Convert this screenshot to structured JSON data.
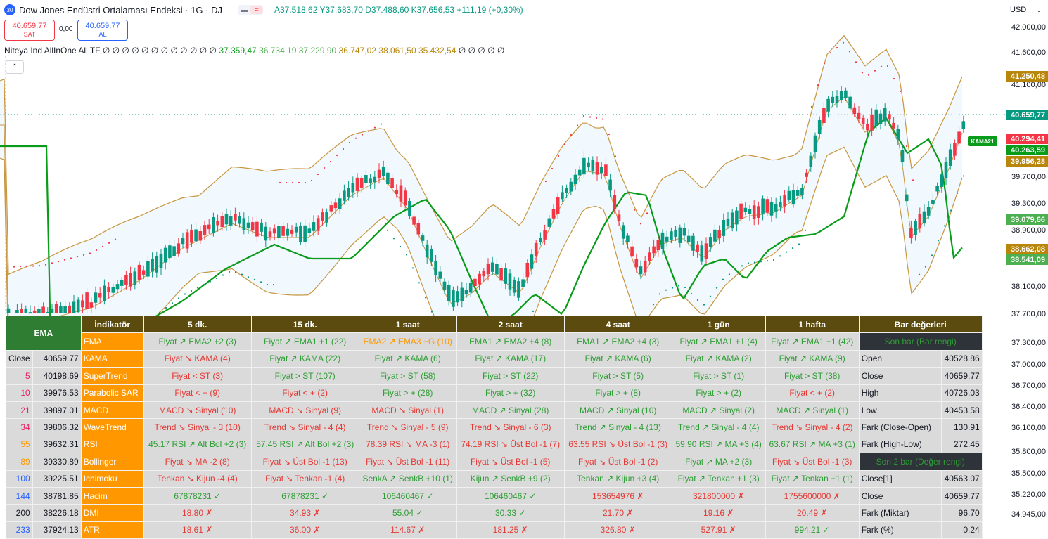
{
  "header": {
    "badge": "30",
    "title": "Dow Jones Endüstri Ortalaması Endeksi · 1G · DJ",
    "ohlc": {
      "o": "A37.518,62",
      "h": "Y37.683,70",
      "l": "D37.488,60",
      "c": "K37.656,53",
      "chg": "+111,19 (+0,30%)"
    }
  },
  "trade": {
    "sell_price": "40.659,77",
    "sell_label": "SAT",
    "spread": "0,00",
    "buy_price": "40.659,77",
    "buy_label": "AL"
  },
  "indicator_line": {
    "prefix": "Niteya Ind AllInOne All TF",
    "zeros": "∅ ∅ ∅ ∅ ∅ ∅ ∅ ∅ ∅ ∅ ∅ ∅",
    "v1": "37.359,47",
    "v2": "36.734,19",
    "v3": "37.229,90",
    "v4": "36.747,02",
    "v5": "38.061,50",
    "v6": "35.432,54",
    "tail": "∅ ∅ ∅ ∅ ∅"
  },
  "currency": "USD",
  "price_axis": [
    "42.000,00",
    "41.600,00",
    "41.100,00",
    "39.700,00",
    "39.300,00",
    "38.900,00",
    "38.100,00",
    "37.700,00",
    "37.300,00",
    "37.000,00",
    "36.700,00",
    "36.400,00",
    "36.100,00",
    "35.800,00",
    "35.500,00",
    "35.220,00",
    "34.945,00"
  ],
  "price_labels": [
    {
      "text": "41.250,48",
      "color": "#b8860b"
    },
    {
      "text": "40.659,77",
      "color": "#089981"
    },
    {
      "text": "40.294,41",
      "color": "#f23645"
    },
    {
      "text": "40.263,59",
      "color": "#089c1a"
    },
    {
      "text": "39.956,28",
      "color": "#b8860b"
    },
    {
      "text": "39.079,66",
      "color": "#4caf50"
    },
    {
      "text": "38.662,08",
      "color": "#b8860b"
    },
    {
      "text": "38.541,09",
      "color": "#4caf50"
    }
  ],
  "kama_label": "KAMA21",
  "table": {
    "ema_header": "EMA",
    "ind_header": "İndikatör",
    "tf_headers": [
      "5 dk.",
      "15 dk.",
      "1 saat",
      "2 saat",
      "4 saat",
      "1 gün",
      "1 hafta"
    ],
    "bar_header": "Bar değerleri",
    "ema_rows": [
      {
        "p": "Close",
        "v": "40659.77",
        "c": "#131722"
      },
      {
        "p": "5",
        "v": "40198.69",
        "c": "#e91e63"
      },
      {
        "p": "10",
        "v": "39976.53",
        "c": "#e91e63"
      },
      {
        "p": "21",
        "v": "39897.01",
        "c": "#e91e63"
      },
      {
        "p": "34",
        "v": "39806.32",
        "c": "#e91e63"
      },
      {
        "p": "55",
        "v": "39632.31",
        "c": "#ff9800"
      },
      {
        "p": "89",
        "v": "39330.89",
        "c": "#ff9800"
      },
      {
        "p": "100",
        "v": "39225.51",
        "c": "#2962ff"
      },
      {
        "p": "144",
        "v": "38781.85",
        "c": "#2962ff"
      },
      {
        "p": "200",
        "v": "38226.18",
        "c": "#131722"
      },
      {
        "p": "233",
        "v": "37924.13",
        "c": "#2962ff"
      }
    ],
    "rows": [
      {
        "name": "EMA",
        "cells": [
          [
            "Fiyat ↗ EMA2 +2 (3)",
            "g"
          ],
          [
            "Fiyat ↗ EMA1 +1 (22)",
            "g"
          ],
          [
            "EMA2 ↗ EMA3 +G (10)",
            "o"
          ],
          [
            "EMA1 ↗ EMA2 +4 (8)",
            "g"
          ],
          [
            "EMA1 ↗ EMA2 +4 (3)",
            "g"
          ],
          [
            "Fiyat ↗ EMA1 +1 (4)",
            "g"
          ],
          [
            "Fiyat ↗ EMA1 +1 (42)",
            "g"
          ]
        ]
      },
      {
        "name": "KAMA",
        "cells": [
          [
            "Fiyat ↘ KAMA (4)",
            "r"
          ],
          [
            "Fiyat ↗ KAMA (22)",
            "g"
          ],
          [
            "Fiyat ↗ KAMA (6)",
            "g"
          ],
          [
            "Fiyat ↗ KAMA (17)",
            "g"
          ],
          [
            "Fiyat ↗ KAMA (6)",
            "g"
          ],
          [
            "Fiyat ↗ KAMA (2)",
            "g"
          ],
          [
            "Fiyat ↗ KAMA (9)",
            "g"
          ]
        ]
      },
      {
        "name": "SuperTrend",
        "cells": [
          [
            "Fiyat < ST (3)",
            "r"
          ],
          [
            "Fiyat > ST (107)",
            "g"
          ],
          [
            "Fiyat > ST (58)",
            "g"
          ],
          [
            "Fiyat > ST (22)",
            "g"
          ],
          [
            "Fiyat > ST (5)",
            "g"
          ],
          [
            "Fiyat > ST (1)",
            "g"
          ],
          [
            "Fiyat > ST (38)",
            "g"
          ]
        ]
      },
      {
        "name": "Parabolic SAR",
        "cells": [
          [
            "Fiyat < + (9)",
            "r"
          ],
          [
            "Fiyat < + (2)",
            "r"
          ],
          [
            "Fiyat > + (28)",
            "g"
          ],
          [
            "Fiyat > + (32)",
            "g"
          ],
          [
            "Fiyat > + (8)",
            "g"
          ],
          [
            "Fiyat > + (2)",
            "g"
          ],
          [
            "Fiyat < + (2)",
            "r"
          ]
        ]
      },
      {
        "name": "MACD",
        "cells": [
          [
            "MACD ↘ Sinyal (10)",
            "r"
          ],
          [
            "MACD ↘ Sinyal (9)",
            "r"
          ],
          [
            "MACD ↘ Sinyal (1)",
            "r"
          ],
          [
            "MACD ↗ Sinyal (28)",
            "g"
          ],
          [
            "MACD ↗ Sinyal (10)",
            "g"
          ],
          [
            "MACD ↗ Sinyal (2)",
            "g"
          ],
          [
            "MACD ↗ Sinyal (1)",
            "g"
          ]
        ]
      },
      {
        "name": "WaveTrend",
        "cells": [
          [
            "Trend ↘ Sinyal - 3 (10)",
            "r"
          ],
          [
            "Trend ↘ Sinyal - 4 (4)",
            "r"
          ],
          [
            "Trend ↘ Sinyal - 5 (9)",
            "r"
          ],
          [
            "Trend ↘ Sinyal - 6 (3)",
            "r"
          ],
          [
            "Trend ↗ Sinyal - 4 (13)",
            "g"
          ],
          [
            "Trend ↗ Sinyal - 4 (4)",
            "g"
          ],
          [
            "Trend ↘ Sinyal - 4 (2)",
            "r"
          ]
        ]
      },
      {
        "name": "RSI",
        "cells": [
          [
            "45.17 RSI ↗ Alt Bol +2 (3)",
            "g"
          ],
          [
            "57.45 RSI ↗ Alt Bol +2 (3)",
            "g"
          ],
          [
            "78.39 RSI ↘ MA -3 (1)",
            "r"
          ],
          [
            "74.19 RSI ↘ Üst Bol -1 (7)",
            "r"
          ],
          [
            "63.55 RSI ↘ Üst Bol -1 (3)",
            "r"
          ],
          [
            "59.90 RSI ↗ MA +3 (4)",
            "g"
          ],
          [
            "63.67 RSI ↗ MA +3 (1)",
            "g"
          ]
        ]
      },
      {
        "name": "Bollinger",
        "cells": [
          [
            "Fiyat ↘ MA -2 (8)",
            "r"
          ],
          [
            "Fiyat ↘ Üst Bol -1 (13)",
            "r"
          ],
          [
            "Fiyat ↘ Üst Bol -1 (11)",
            "r"
          ],
          [
            "Fiyat ↘ Üst Bol -1 (5)",
            "r"
          ],
          [
            "Fiyat ↘ Üst Bol -1 (2)",
            "r"
          ],
          [
            "Fiyat ↗ MA +2 (3)",
            "g"
          ],
          [
            "Fiyat ↘ Üst Bol -1 (3)",
            "r"
          ]
        ]
      },
      {
        "name": "Ichimoku",
        "cells": [
          [
            "Tenkan ↘ Kijun -4 (4)",
            "r"
          ],
          [
            "Fiyat ↘ Tenkan -1 (4)",
            "r"
          ],
          [
            "SenkA ↗ SenkB +10 (1)",
            "g"
          ],
          [
            "Kijun ↗ SenkB +9 (2)",
            "g"
          ],
          [
            "Tenkan ↗ Kijun +3 (4)",
            "g"
          ],
          [
            "Fiyat ↗ Tenkan +1 (3)",
            "g"
          ],
          [
            "Fiyat ↗ Tenkan +1 (1)",
            "g"
          ]
        ]
      },
      {
        "name": "Hacim",
        "cells": [
          [
            "67878231 ✓",
            "g"
          ],
          [
            "67878231 ✓",
            "g"
          ],
          [
            "106460467 ✓",
            "g"
          ],
          [
            "106460467 ✓",
            "g"
          ],
          [
            "153654976 ✗",
            "r"
          ],
          [
            "321800000 ✗",
            "r"
          ],
          [
            "1755600000 ✗",
            "r"
          ]
        ]
      },
      {
        "name": "DMI",
        "cells": [
          [
            "18.80 ✗",
            "r"
          ],
          [
            "34.93 ✗",
            "r"
          ],
          [
            "55.04 ✓",
            "g"
          ],
          [
            "30.33 ✓",
            "g"
          ],
          [
            "21.70 ✗",
            "r"
          ],
          [
            "19.16 ✗",
            "r"
          ],
          [
            "20.49 ✗",
            "r"
          ]
        ]
      },
      {
        "name": "ATR",
        "cells": [
          [
            "18.61 ✗",
            "r"
          ],
          [
            "36.00 ✗",
            "r"
          ],
          [
            "114.67 ✗",
            "r"
          ],
          [
            "181.25 ✗",
            "r"
          ],
          [
            "326.80 ✗",
            "r"
          ],
          [
            "527.91 ✗",
            "r"
          ],
          [
            "994.21 ✓",
            "g"
          ]
        ]
      }
    ],
    "bar_rows": [
      {
        "l": "Son bar (Bar rengi)",
        "v": "",
        "sub": true
      },
      {
        "l": "Open",
        "v": "40528.86"
      },
      {
        "l": "Close",
        "v": "40659.77"
      },
      {
        "l": "High",
        "v": "40726.03"
      },
      {
        "l": "Low",
        "v": "40453.58"
      },
      {
        "l": "Fark (Close-Open)",
        "v": "130.91"
      },
      {
        "l": "Fark (High-Low)",
        "v": "272.45"
      },
      {
        "l": "Son 2 bar (Değer rengi)",
        "v": "",
        "sub": true
      },
      {
        "l": "Close[1]",
        "v": "40563.07"
      },
      {
        "l": "Close",
        "v": "40659.77"
      },
      {
        "l": "Fark (Miktar)",
        "v": "96.70"
      },
      {
        "l": "Fark (%)",
        "v": "0.24"
      }
    ]
  },
  "colors": {
    "up": "#089981",
    "down": "#f23645",
    "kama": "#089c1a",
    "bb": "#c8963e"
  }
}
